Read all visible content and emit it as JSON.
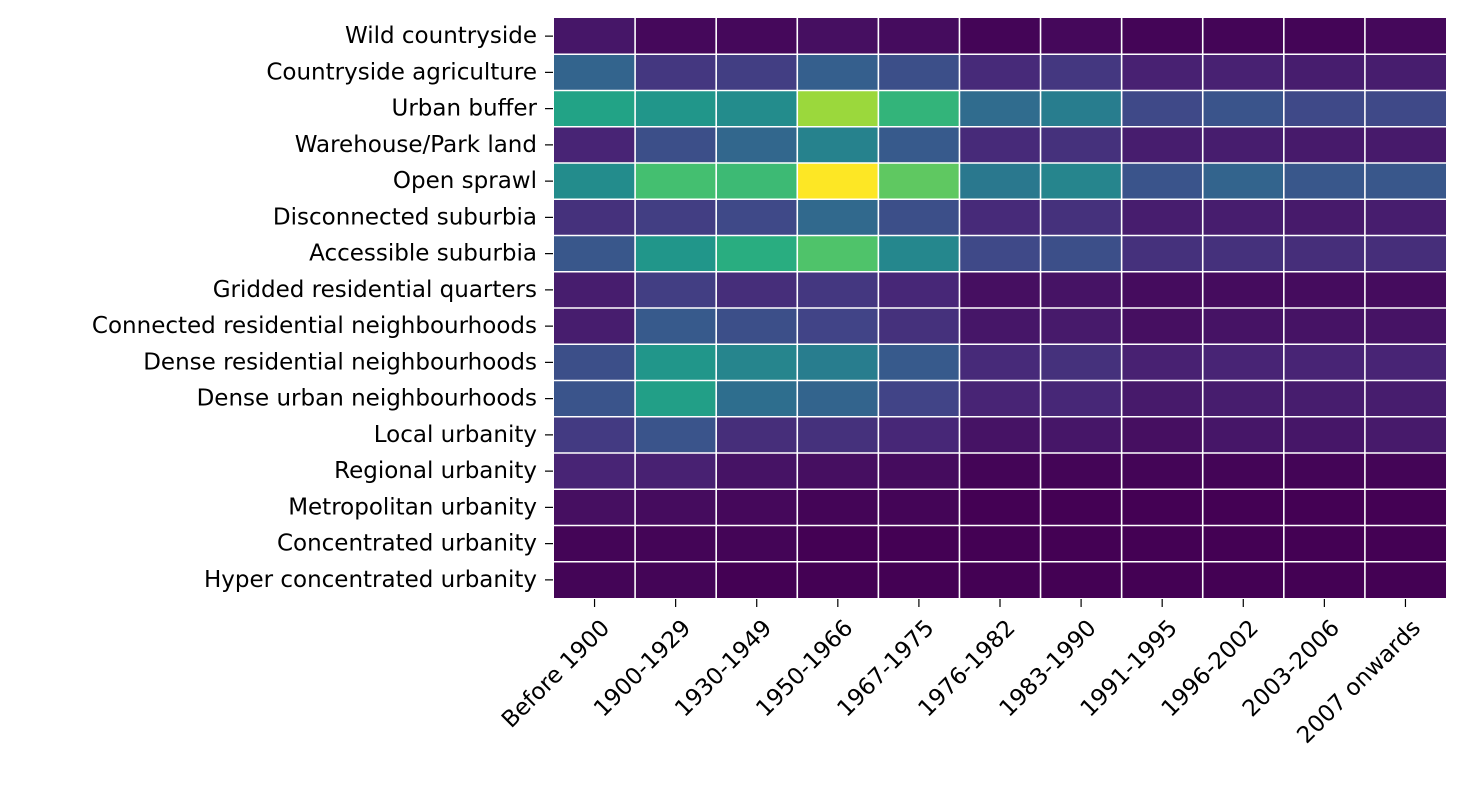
{
  "chart_data": {
    "type": "heatmap",
    "colormap": "viridis",
    "grid": false,
    "legend": "none",
    "title": "",
    "xlabel": "",
    "ylabel": "",
    "x_categories": [
      "Before 1900",
      "1900-1929",
      "1930-1949",
      "1950-1966",
      "1967-1975",
      "1976-1982",
      "1983-1990",
      "1991-1995",
      "1996-2002",
      "2003-2006",
      "2007 onwards"
    ],
    "y_categories": [
      "Wild countryside",
      "Countryside agriculture",
      "Urban buffer",
      "Warehouse/Park land",
      "Open sprawl",
      "Disconnected suburbia",
      "Accessible suburbia",
      "Gridded residential quarters",
      "Connected residential neighbourhoods",
      "Dense residential neighbourhoods",
      "Dense urban neighbourhoods",
      "Local urbanity",
      "Regional urbanity",
      "Metropolitan urbanity",
      "Concentrated urbanity",
      "Hyper concentrated urbanity"
    ],
    "values_relative": [
      [
        0.06,
        0.02,
        0.02,
        0.04,
        0.03,
        0.01,
        0.02,
        0.01,
        0.01,
        0.01,
        0.02
      ],
      [
        0.32,
        0.16,
        0.18,
        0.3,
        0.24,
        0.12,
        0.16,
        0.09,
        0.09,
        0.08,
        0.08
      ],
      [
        0.58,
        0.52,
        0.48,
        0.85,
        0.65,
        0.35,
        0.42,
        0.22,
        0.26,
        0.22,
        0.22
      ],
      [
        0.1,
        0.24,
        0.33,
        0.44,
        0.28,
        0.12,
        0.14,
        0.08,
        0.08,
        0.07,
        0.07
      ],
      [
        0.48,
        0.7,
        0.68,
        1.0,
        0.75,
        0.4,
        0.45,
        0.26,
        0.32,
        0.27,
        0.27
      ],
      [
        0.14,
        0.18,
        0.22,
        0.34,
        0.24,
        0.12,
        0.14,
        0.08,
        0.08,
        0.07,
        0.08
      ],
      [
        0.27,
        0.52,
        0.62,
        0.72,
        0.46,
        0.22,
        0.24,
        0.14,
        0.14,
        0.13,
        0.13
      ],
      [
        0.08,
        0.18,
        0.13,
        0.16,
        0.11,
        0.04,
        0.05,
        0.03,
        0.03,
        0.03,
        0.03
      ],
      [
        0.08,
        0.28,
        0.24,
        0.2,
        0.14,
        0.06,
        0.07,
        0.04,
        0.05,
        0.05,
        0.05
      ],
      [
        0.24,
        0.52,
        0.45,
        0.42,
        0.28,
        0.12,
        0.14,
        0.09,
        0.1,
        0.1,
        0.1
      ],
      [
        0.26,
        0.56,
        0.36,
        0.32,
        0.2,
        0.1,
        0.11,
        0.07,
        0.08,
        0.08,
        0.08
      ],
      [
        0.17,
        0.26,
        0.13,
        0.14,
        0.11,
        0.05,
        0.06,
        0.04,
        0.06,
        0.06,
        0.07
      ],
      [
        0.1,
        0.09,
        0.05,
        0.04,
        0.03,
        0.01,
        0.01,
        0.01,
        0.01,
        0.01,
        0.01
      ],
      [
        0.04,
        0.03,
        0.02,
        0.01,
        0.01,
        0.0,
        0.0,
        0.0,
        0.0,
        0.0,
        0.0
      ],
      [
        0.01,
        0.01,
        0.01,
        0.0,
        0.0,
        0.0,
        0.0,
        0.0,
        0.0,
        0.0,
        0.0
      ],
      [
        0.01,
        0.01,
        0.0,
        0.0,
        0.0,
        0.0,
        0.0,
        0.0,
        0.0,
        0.0,
        0.0
      ]
    ]
  }
}
